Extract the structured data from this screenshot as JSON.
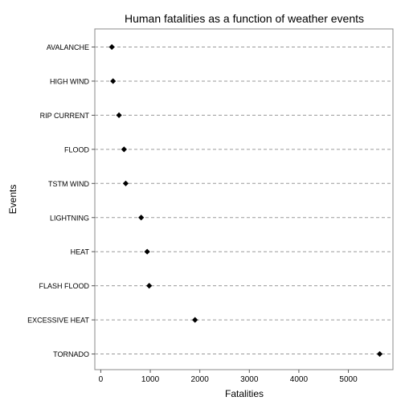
{
  "chart_data": {
    "type": "scatter",
    "title": "Human fatalities as a function of weather events",
    "xlabel": "Fatalities",
    "ylabel": "Events",
    "categories": [
      "AVALANCHE",
      "HIGH WIND",
      "RIP CURRENT",
      "FLOOD",
      "TSTM WIND",
      "LIGHTNING",
      "HEAT",
      "FLASH FLOOD",
      "EXCESSIVE HEAT",
      "TORNADO"
    ],
    "values": [
      224,
      248,
      368,
      470,
      504,
      816,
      937,
      978,
      1903,
      5633
    ],
    "xlim": [
      -120,
      5900
    ],
    "xticks": [
      0,
      1000,
      2000,
      3000,
      4000,
      5000
    ],
    "xtick_labels": [
      "0",
      "1000",
      "2000",
      "3000",
      "4000",
      "5000"
    ],
    "grid": "dashed horizontal guide line per category",
    "marker": "diamond",
    "colors": {
      "marker": "#000000",
      "guide": "#9a9a9a",
      "axis": "#555555",
      "text": "#000000",
      "border": "#888888"
    }
  }
}
